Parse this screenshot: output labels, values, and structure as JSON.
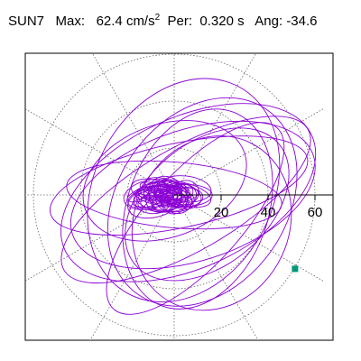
{
  "header": {
    "station": "SUN7",
    "max_label": "Max:",
    "max_value": "62.4",
    "max_unit": "cm/s",
    "max_unit_exp": "2",
    "per_label": "Per:",
    "per_value": "0.320",
    "per_unit": "s",
    "ang_label": "Ang:",
    "ang_value": "-34.6"
  },
  "chart_data": {
    "type": "polar-orbit",
    "radial_ticks": [
      20,
      40,
      60
    ],
    "radial_tick_labels": [
      "20",
      "40",
      "60"
    ],
    "rmax": 64,
    "rings": [
      20,
      40,
      60
    ],
    "grid": true,
    "grid_style": "dotted",
    "spoke_angles_deg": [
      0,
      30,
      60,
      90,
      120,
      150,
      180,
      210,
      240,
      270,
      300,
      330
    ],
    "trace_color": "#8a00d4",
    "end_marker": {
      "x": 51.5,
      "y": -31.5,
      "color": "#009977"
    },
    "orbit_loops": [
      {
        "cx": 6,
        "cy": 1,
        "a": 58,
        "b": 32,
        "rot": -25
      },
      {
        "cx": 8,
        "cy": 0,
        "a": 54,
        "b": 28,
        "rot": -18
      },
      {
        "cx": 5,
        "cy": -2,
        "a": 60,
        "b": 22,
        "rot": -30
      },
      {
        "cx": 12,
        "cy": -3,
        "a": 48,
        "b": 36,
        "rot": -55
      },
      {
        "cx": 4,
        "cy": 2,
        "a": 50,
        "b": 38,
        "rot": -62
      },
      {
        "cx": 10,
        "cy": -6,
        "a": 44,
        "b": 30,
        "rot": -70
      },
      {
        "cx": 2,
        "cy": 4,
        "a": 56,
        "b": 18,
        "rot": -12
      },
      {
        "cx": 14,
        "cy": -4,
        "a": 40,
        "b": 26,
        "rot": -40
      },
      {
        "cx": -4,
        "cy": 6,
        "a": 36,
        "b": 24,
        "rot": -20
      },
      {
        "cx": 9,
        "cy": -10,
        "a": 52,
        "b": 20,
        "rot": -48
      },
      {
        "cx": 0,
        "cy": 0,
        "a": 46,
        "b": 14,
        "rot": 5
      },
      {
        "cx": 16,
        "cy": -12,
        "a": 38,
        "b": 33,
        "rot": -65
      }
    ],
    "core_cluster": {
      "cx": -3,
      "cy": 0,
      "rx": 18,
      "ry": 6,
      "loops": 40
    }
  }
}
